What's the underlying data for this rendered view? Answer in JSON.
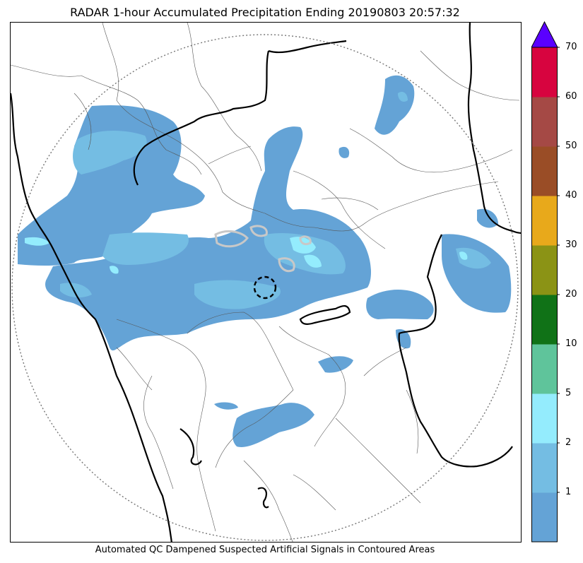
{
  "title": "RADAR 1-hour Accumulated Precipitation Ending 20190803 20:57:32",
  "caption": "Automated QC Dampened Suspected Artificial Signals in Contoured Areas",
  "colorbar": {
    "extend": "max",
    "extend_color": "#5a00ff",
    "bins": [
      {
        "color": "#64a3d6"
      },
      {
        "color": "#74bde3"
      },
      {
        "color": "#94ecfd"
      },
      {
        "color": "#5fc49b"
      },
      {
        "color": "#107217"
      },
      {
        "color": "#8b9315"
      },
      {
        "color": "#e8a91b"
      },
      {
        "color": "#9a4d26"
      },
      {
        "color": "#a54945"
      },
      {
        "color": "#d7043f"
      }
    ],
    "tick_labels": [
      "1",
      "2",
      "5",
      "10",
      "20",
      "30",
      "40",
      "50",
      "60",
      "70"
    ]
  },
  "map": {
    "range_ring": "dotted",
    "marker": "dashed-circle",
    "precip_colors": {
      "light": "#64a3d6",
      "medium": "#74bde3",
      "heavy": "#94ecfd",
      "qc_contour": "#c8c8c8"
    }
  }
}
